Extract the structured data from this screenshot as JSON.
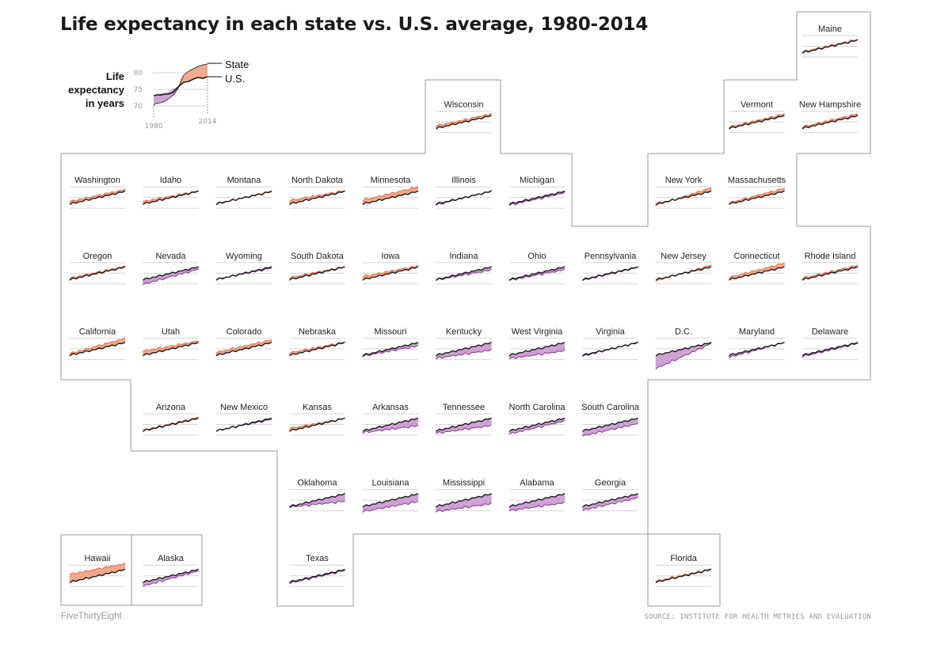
{
  "title": "Life expectancy in each state vs. U.S. average, 1980-2014",
  "source": "SOURCE: INSTITUTE FOR HEALTH METRICS AND EVALUATION",
  "credit": "FiveThirtyEight",
  "colors": {
    "above": "#f4a98b",
    "below": "#cfa2d4",
    "state_line_above": "#e8714f",
    "state_line_below": "#8e3f99",
    "us_line": "#1a1a1a",
    "border": "#9a9a9a",
    "grid": "#d6d6d6"
  },
  "legend": {
    "title_lines": [
      "Life",
      "expectancy",
      "in years"
    ],
    "state_label": "State",
    "us_label": "U.S.",
    "y_ticks": [
      "80",
      "75",
      "70"
    ],
    "x_ticks": [
      "1980",
      "2014"
    ]
  },
  "chart_data": {
    "type": "area",
    "description_units": "life expectancy in years",
    "x": [
      1980,
      2014
    ],
    "ylim": [
      67,
      82
    ],
    "us_series": {
      "name": "U.S.",
      "values_1980_2014": [
        73.8,
        79.1
      ]
    },
    "states": [
      {
        "name": "Maine",
        "diff_1980": 0.4,
        "diff_2014": 0.3
      },
      {
        "name": "Wisconsin",
        "diff_1980": 1.0,
        "diff_2014": 0.8
      },
      {
        "name": "Vermont",
        "diff_1980": 0.5,
        "diff_2014": 0.7
      },
      {
        "name": "New Hampshire",
        "diff_1980": 0.6,
        "diff_2014": 0.8
      },
      {
        "name": "Washington",
        "diff_1980": 1.0,
        "diff_2014": 0.8
      },
      {
        "name": "Idaho",
        "diff_1980": 1.0,
        "diff_2014": 0.2
      },
      {
        "name": "Montana",
        "diff_1980": 0.3,
        "diff_2014": -0.3
      },
      {
        "name": "North Dakota",
        "diff_1980": 1.4,
        "diff_2014": 0.3
      },
      {
        "name": "Minnesota",
        "diff_1980": 1.6,
        "diff_2014": 1.9
      },
      {
        "name": "Illinois",
        "diff_1980": -0.4,
        "diff_2014": 0.2
      },
      {
        "name": "Michigan",
        "diff_1980": -0.5,
        "diff_2014": -0.6
      },
      {
        "name": "New York",
        "diff_1980": -0.6,
        "diff_2014": 1.5
      },
      {
        "name": "Massachusetts",
        "diff_1980": 0.5,
        "diff_2014": 1.3
      },
      {
        "name": "Oregon",
        "diff_1980": 0.6,
        "diff_2014": 0.3
      },
      {
        "name": "Nevada",
        "diff_1980": -2.0,
        "diff_2014": -0.9
      },
      {
        "name": "Wyoming",
        "diff_1980": 0.2,
        "diff_2014": -0.5
      },
      {
        "name": "South Dakota",
        "diff_1980": 0.8,
        "diff_2014": 0.2
      },
      {
        "name": "Iowa",
        "diff_1980": 1.3,
        "diff_2014": 0.5
      },
      {
        "name": "Indiana",
        "diff_1980": -0.2,
        "diff_2014": -1.2
      },
      {
        "name": "Ohio",
        "diff_1980": -0.3,
        "diff_2014": -1.1
      },
      {
        "name": "Pennsylvania",
        "diff_1980": -0.3,
        "diff_2014": -0.2
      },
      {
        "name": "New Jersey",
        "diff_1980": -0.5,
        "diff_2014": 0.8
      },
      {
        "name": "Connecticut",
        "diff_1980": 0.9,
        "diff_2014": 1.6
      },
      {
        "name": "Rhode Island",
        "diff_1980": 0.6,
        "diff_2014": 0.7
      },
      {
        "name": "California",
        "diff_1980": 0.7,
        "diff_2014": 1.8
      },
      {
        "name": "Utah",
        "diff_1980": 1.7,
        "diff_2014": 0.7
      },
      {
        "name": "Colorado",
        "diff_1980": 1.2,
        "diff_2014": 1.2
      },
      {
        "name": "Nebraska",
        "diff_1980": 1.0,
        "diff_2014": 0.3
      },
      {
        "name": "Missouri",
        "diff_1980": -0.4,
        "diff_2014": -1.3
      },
      {
        "name": "Kentucky",
        "diff_1980": -1.3,
        "diff_2014": -3.1
      },
      {
        "name": "West Virginia",
        "diff_1980": -1.4,
        "diff_2014": -3.4
      },
      {
        "name": "Virginia",
        "diff_1980": -0.4,
        "diff_2014": 0.2
      },
      {
        "name": "D.C.",
        "diff_1980": -5.6,
        "diff_2014": -0.4
      },
      {
        "name": "Maryland",
        "diff_1980": -0.9,
        "diff_2014": 0.1
      },
      {
        "name": "Delaware",
        "diff_1980": -0.6,
        "diff_2014": -0.3
      },
      {
        "name": "Arizona",
        "diff_1980": 0.3,
        "diff_2014": 0.4
      },
      {
        "name": "New Mexico",
        "diff_1980": 0.1,
        "diff_2014": -0.5
      },
      {
        "name": "Kansas",
        "diff_1980": 1.0,
        "diff_2014": 0.0
      },
      {
        "name": "Arkansas",
        "diff_1980": -0.7,
        "diff_2014": -3.1
      },
      {
        "name": "Tennessee",
        "diff_1980": -1.0,
        "diff_2014": -3.0
      },
      {
        "name": "North Carolina",
        "diff_1980": -1.3,
        "diff_2014": -1.1
      },
      {
        "name": "South Carolina",
        "diff_1980": -2.1,
        "diff_2014": -2.2
      },
      {
        "name": "Oklahoma",
        "diff_1980": -0.2,
        "diff_2014": -3.1
      },
      {
        "name": "Louisiana",
        "diff_1980": -2.1,
        "diff_2014": -3.2
      },
      {
        "name": "Mississippi",
        "diff_1980": -2.1,
        "diff_2014": -4.1
      },
      {
        "name": "Alabama",
        "diff_1980": -1.7,
        "diff_2014": -3.7
      },
      {
        "name": "Georgia",
        "diff_1980": -1.6,
        "diff_2014": -1.6
      },
      {
        "name": "Hawaii",
        "diff_1980": 3.3,
        "diff_2014": 2.5
      },
      {
        "name": "Alaska",
        "diff_1980": -1.6,
        "diff_2014": -0.6
      },
      {
        "name": "Texas",
        "diff_1980": -0.4,
        "diff_2014": -0.4
      },
      {
        "name": "Florida",
        "diff_1980": 0.4,
        "diff_2014": 0.3
      }
    ]
  }
}
